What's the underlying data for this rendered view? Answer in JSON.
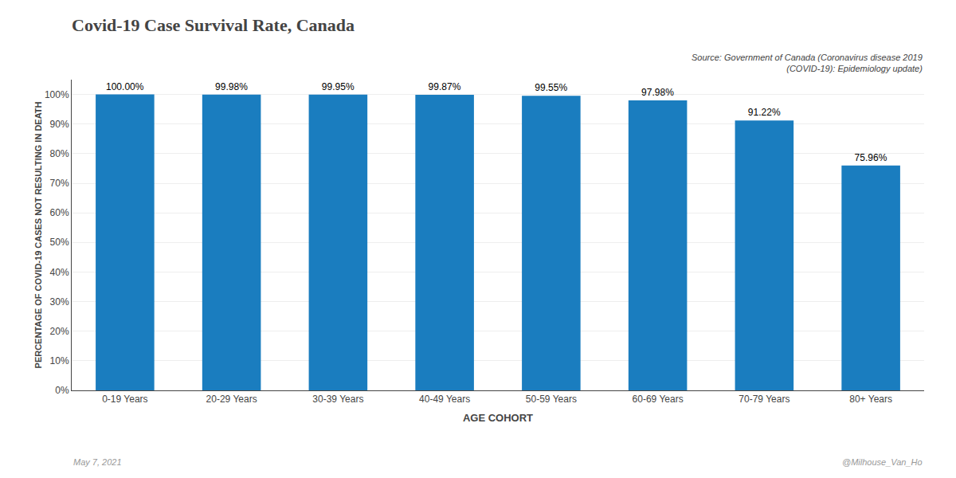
{
  "chart_data": {
    "type": "bar",
    "title": "Covid-19 Case Survival Rate, Canada",
    "xlabel": "AGE COHORT",
    "ylabel": "PERCENTAGE OF COVID-19 CASES NOT RESULTING IN DEATH",
    "categories": [
      "0-19 Years",
      "20-29 Years",
      "30-39 Years",
      "40-49 Years",
      "50-59 Years",
      "60-69 Years",
      "70-79 Years",
      "80+ Years"
    ],
    "values": [
      100.0,
      99.98,
      99.95,
      99.87,
      99.55,
      97.98,
      91.22,
      75.96
    ],
    "value_labels": [
      "100.00%",
      "99.98%",
      "99.95%",
      "99.87%",
      "99.55%",
      "97.98%",
      "91.22%",
      "75.96%"
    ],
    "data_labels": true,
    "color": "#1a7dbf",
    "ylim": [
      0,
      105
    ],
    "yticks": [
      {
        "value": 0,
        "label": "0%"
      },
      {
        "value": 10,
        "label": "10%"
      },
      {
        "value": 20,
        "label": "20%"
      },
      {
        "value": 30,
        "label": "30%"
      },
      {
        "value": 40,
        "label": "40%"
      },
      {
        "value": 50,
        "label": "50%"
      },
      {
        "value": 60,
        "label": "60%"
      },
      {
        "value": 70,
        "label": "70%"
      },
      {
        "value": 80,
        "label": "80%"
      },
      {
        "value": 90,
        "label": "90%"
      },
      {
        "value": 100,
        "label": "100%"
      }
    ],
    "grid": true,
    "annotations": [
      "Source: Government of Canada (Coronavirus disease 2019\n(COVID-19): Epidemiology update)",
      "May 7, 2021",
      "@Milhouse_Van_Ho"
    ]
  }
}
